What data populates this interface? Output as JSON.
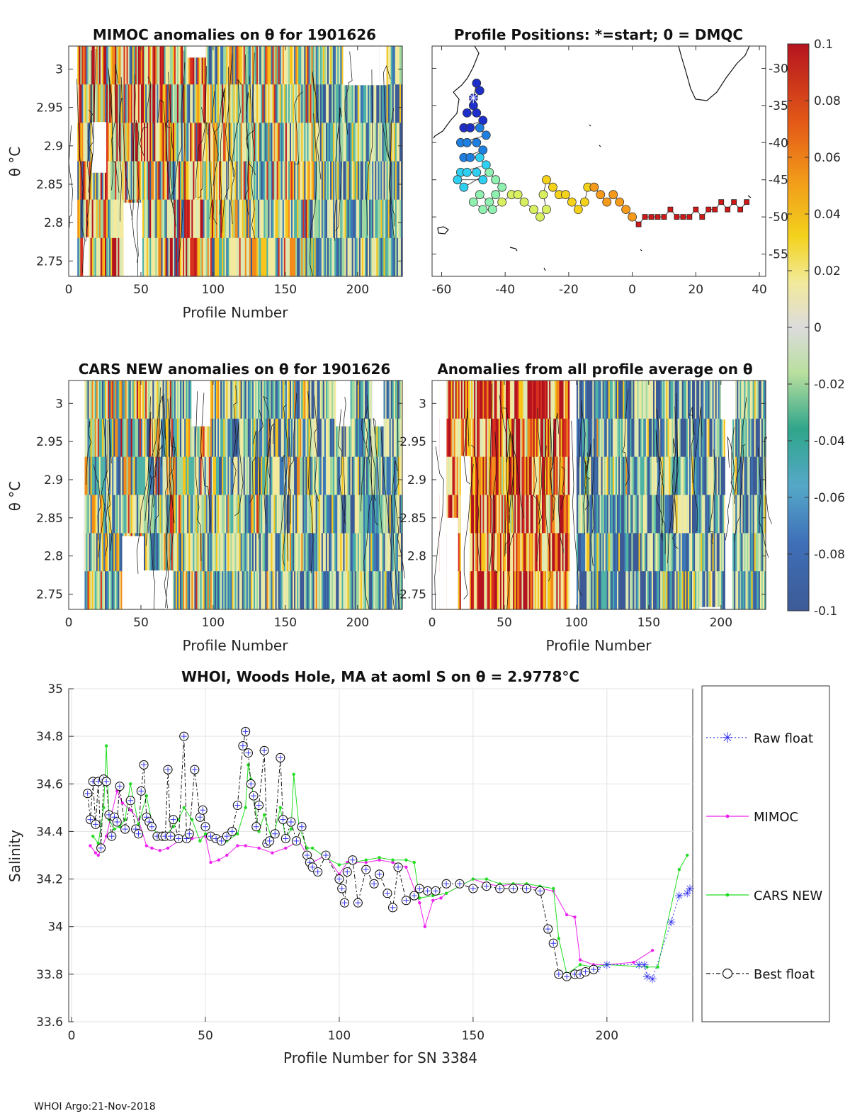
{
  "figure": {
    "footer": "WHOI Argo:21-Nov-2018"
  },
  "chart_data": [
    {
      "id": "mimoc",
      "type": "heatmap",
      "title": "MIMOC anomalies on θ  for 1901626",
      "xlabel": "Profile Number",
      "ylabel": "θ °C",
      "xlim": [
        0,
        231
      ],
      "ylim": [
        2.73,
        3.03
      ],
      "xticks": [
        "0",
        "50",
        "100",
        "150",
        "200"
      ],
      "yticks": [
        "3",
        "2.95",
        "2.9",
        "2.85",
        "2.8",
        "2.75"
      ]
    },
    {
      "id": "positions",
      "type": "scatter",
      "title": "Profile Positions: *=start; 0 = DMQC",
      "xlim": [
        -63,
        42
      ],
      "ylim": [
        -58,
        -27
      ],
      "xticks": [
        "-60",
        "-40",
        "-20",
        "0",
        "20",
        "40"
      ],
      "yticks": [
        "-30",
        "-35",
        "-40",
        "-45",
        "-50",
        "-55"
      ],
      "track": [
        [
          -50,
          -34
        ],
        [
          -49,
          -32
        ],
        [
          -48,
          -33
        ],
        [
          -50,
          -35
        ],
        [
          -52,
          -36
        ],
        [
          -49,
          -36
        ],
        [
          -47,
          -37
        ],
        [
          -53,
          -38
        ],
        [
          -51,
          -38
        ],
        [
          -48,
          -38
        ],
        [
          -46,
          -39
        ],
        [
          -54,
          -40
        ],
        [
          -52,
          -40
        ],
        [
          -49,
          -40
        ],
        [
          -47,
          -41
        ],
        [
          -53,
          -42
        ],
        [
          -51,
          -42
        ],
        [
          -48,
          -42
        ],
        [
          -46,
          -43
        ],
        [
          -54,
          -44
        ],
        [
          -52,
          -44
        ],
        [
          -49,
          -44
        ],
        [
          -47,
          -45
        ],
        [
          -55,
          -45
        ],
        [
          -53,
          -46
        ],
        [
          -45,
          -44
        ],
        [
          -43,
          -45
        ],
        [
          -41,
          -46
        ],
        [
          -43,
          -47
        ],
        [
          -45,
          -48
        ],
        [
          -48,
          -47
        ],
        [
          -50,
          -48
        ],
        [
          -47,
          -49
        ],
        [
          -44,
          -49
        ],
        [
          -41,
          -48
        ],
        [
          -38,
          -47
        ],
        [
          -36,
          -47
        ],
        [
          -34,
          -48
        ],
        [
          -31,
          -49
        ],
        [
          -29,
          -50
        ],
        [
          -27,
          -49
        ],
        [
          -28,
          -47
        ],
        [
          -27,
          -45
        ],
        [
          -25,
          -46
        ],
        [
          -23,
          -47
        ],
        [
          -21,
          -47
        ],
        [
          -19,
          -48
        ],
        [
          -17,
          -49
        ],
        [
          -15,
          -48
        ],
        [
          -14,
          -46
        ],
        [
          -12,
          -46
        ],
        [
          -10,
          -47
        ],
        [
          -8,
          -48
        ],
        [
          -6,
          -47
        ],
        [
          -4,
          -48
        ],
        [
          -2,
          -49
        ],
        [
          0,
          -50
        ]
      ],
      "dmqc_track": [
        [
          2,
          -51
        ],
        [
          4,
          -50
        ],
        [
          6,
          -50
        ],
        [
          8,
          -50
        ],
        [
          10,
          -50
        ],
        [
          12,
          -49
        ],
        [
          14,
          -50
        ],
        [
          16,
          -50
        ],
        [
          18,
          -50
        ],
        [
          20,
          -49
        ],
        [
          22,
          -50
        ],
        [
          24,
          -49
        ],
        [
          26,
          -49
        ],
        [
          28,
          -48
        ],
        [
          30,
          -49
        ],
        [
          32,
          -48
        ],
        [
          34,
          -49
        ],
        [
          36,
          -48
        ]
      ],
      "start": [
        -50,
        -34
      ]
    },
    {
      "id": "cars",
      "type": "heatmap",
      "title": "CARS NEW anomalies on θ for 1901626",
      "xlabel": "Profile Number",
      "ylabel": "θ °C",
      "xlim": [
        0,
        231
      ],
      "ylim": [
        2.73,
        3.03
      ],
      "xticks": [
        "0",
        "50",
        "100",
        "150",
        "200"
      ],
      "yticks": [
        "3",
        "2.95",
        "2.9",
        "2.85",
        "2.8",
        "2.75"
      ]
    },
    {
      "id": "allavg",
      "type": "heatmap",
      "title": "Anomalies from all profile average on θ",
      "xlabel": "Profile Number",
      "xlim": [
        0,
        231
      ],
      "ylim": [
        2.73,
        3.03
      ],
      "xticks": [
        "0",
        "50",
        "100",
        "150",
        "200"
      ],
      "yticks": [
        "3",
        "2.95",
        "2.9",
        "2.85",
        "2.8",
        "2.75"
      ]
    },
    {
      "id": "colorbar",
      "type": "colorbar",
      "range": [
        -0.1,
        0.1
      ],
      "ticks": [
        "0.1",
        "0.08",
        "0.06",
        "0.04",
        "0.02",
        "0",
        "-0.02",
        "-0.04",
        "-0.06",
        "-0.08",
        "-0.1"
      ]
    },
    {
      "id": "salinity",
      "type": "line",
      "title": "WHOI, Woods Hole, MA at aoml S on θ = 2.9778°C",
      "xlabel": "Profile Number for SN 3384",
      "ylabel": "Salinity",
      "xlim": [
        0,
        231
      ],
      "ylim": [
        33.6,
        35
      ],
      "xticks": [
        "0",
        "50",
        "100",
        "150",
        "200"
      ],
      "yticks": [
        "35",
        "34.8",
        "34.6",
        "34.4",
        "34.2",
        "34",
        "33.8",
        "33.6"
      ],
      "legend": [
        "Raw float",
        "MIMOC",
        "CARS NEW",
        "Best float"
      ],
      "series": [
        {
          "name": "Best float",
          "x": [
            6,
            7,
            8,
            9,
            10,
            11,
            12,
            13,
            14,
            15,
            16,
            17,
            18,
            20,
            22,
            24,
            25,
            26,
            27,
            28,
            29,
            30,
            32,
            34,
            35,
            36,
            37,
            38,
            40,
            42,
            43,
            44,
            46,
            48,
            49,
            50,
            52,
            54,
            56,
            58,
            60,
            62,
            64,
            65,
            66,
            67,
            68,
            69,
            70,
            72,
            73,
            74,
            76,
            78,
            79,
            80,
            82,
            84,
            86,
            88,
            89,
            90,
            92,
            95,
            100,
            101,
            102,
            103,
            105,
            107,
            110,
            113,
            115,
            118,
            120,
            122,
            125,
            128,
            130,
            133,
            136,
            140,
            145,
            150,
            155,
            160,
            165,
            170,
            175,
            178,
            180,
            182,
            185,
            188,
            190,
            192,
            195
          ],
          "y": [
            34.56,
            34.45,
            34.61,
            34.43,
            34.61,
            34.33,
            34.62,
            34.61,
            34.47,
            34.38,
            34.46,
            34.44,
            34.59,
            34.41,
            34.53,
            34.41,
            34.39,
            34.57,
            34.68,
            34.46,
            34.44,
            34.42,
            34.38,
            34.38,
            34.38,
            34.66,
            34.38,
            34.45,
            34.37,
            34.8,
            34.37,
            34.39,
            34.66,
            34.46,
            34.49,
            34.42,
            34.38,
            34.37,
            34.36,
            34.38,
            34.4,
            34.51,
            34.76,
            34.82,
            34.73,
            34.6,
            34.55,
            34.42,
            34.51,
            34.74,
            34.35,
            34.36,
            34.39,
            34.71,
            34.45,
            34.37,
            34.44,
            34.36,
            34.42,
            34.3,
            34.27,
            34.25,
            34.23,
            34.3,
            34.2,
            34.16,
            34.1,
            34.23,
            34.28,
            34.1,
            34.24,
            34.18,
            34.22,
            34.14,
            34.08,
            34.25,
            34.11,
            34.13,
            34.16,
            34.15,
            34.15,
            34.18,
            34.18,
            34.16,
            34.17,
            34.16,
            34.16,
            34.16,
            34.15,
            33.99,
            33.93,
            33.8,
            33.79,
            33.8,
            33.8,
            33.81,
            33.82
          ]
        },
        {
          "name": "Raw float",
          "x": [
            196,
            200,
            212,
            214,
            215,
            217,
            224,
            227,
            230,
            231
          ],
          "y": [
            33.82,
            33.84,
            33.84,
            33.84,
            33.79,
            33.78,
            34.02,
            34.13,
            34.14,
            34.16
          ]
        },
        {
          "name": "MIMOC",
          "x": [
            7,
            9,
            10,
            11,
            13,
            17,
            19,
            22,
            25,
            28,
            30,
            33,
            36,
            40,
            45,
            50,
            52,
            55,
            58,
            62,
            65,
            70,
            75,
            80,
            85,
            89,
            90,
            95,
            100,
            103,
            106,
            110,
            115,
            120,
            125,
            130,
            132,
            135,
            138,
            140,
            145,
            150,
            155,
            160,
            165,
            170,
            175,
            180,
            185,
            188,
            190,
            195,
            200,
            210,
            217
          ],
          "y": [
            34.34,
            34.31,
            34.3,
            34.32,
            34.38,
            34.57,
            34.52,
            34.49,
            34.45,
            34.34,
            34.33,
            34.32,
            34.33,
            34.36,
            34.37,
            34.38,
            34.27,
            34.28,
            34.3,
            34.34,
            34.34,
            34.33,
            34.31,
            34.33,
            34.36,
            34.28,
            34.27,
            34.3,
            34.22,
            34.27,
            34.27,
            34.27,
            34.28,
            34.27,
            34.25,
            34.1,
            34.0,
            34.11,
            34.12,
            34.14,
            34.17,
            34.2,
            34.18,
            34.17,
            34.18,
            34.17,
            34.16,
            34.15,
            34.05,
            34.04,
            33.86,
            33.84,
            33.84,
            33.85,
            33.9
          ]
        },
        {
          "name": "CARS NEW",
          "x": [
            8,
            10,
            12,
            13,
            14,
            16,
            18,
            20,
            22,
            25,
            28,
            30,
            32,
            35,
            38,
            40,
            42,
            45,
            48,
            50,
            52,
            55,
            58,
            62,
            65,
            66,
            67,
            70,
            72,
            75,
            78,
            80,
            82,
            83,
            85,
            88,
            90,
            95,
            100,
            105,
            110,
            115,
            120,
            125,
            128,
            130,
            135,
            140,
            145,
            150,
            155,
            160,
            165,
            170,
            175,
            180,
            182,
            185,
            190,
            195,
            200,
            215,
            219,
            227,
            230
          ],
          "y": [
            34.38,
            34.35,
            34.5,
            34.76,
            34.45,
            34.41,
            34.42,
            34.45,
            34.6,
            34.43,
            34.55,
            34.44,
            34.38,
            34.38,
            34.42,
            34.45,
            34.5,
            34.45,
            34.36,
            34.39,
            34.38,
            34.37,
            34.36,
            34.39,
            34.5,
            34.68,
            34.62,
            34.4,
            34.47,
            34.36,
            34.5,
            34.37,
            34.41,
            34.64,
            34.42,
            34.33,
            34.33,
            34.29,
            34.26,
            34.27,
            34.28,
            34.29,
            34.28,
            34.28,
            34.27,
            34.12,
            34.13,
            34.14,
            34.17,
            34.2,
            34.2,
            34.18,
            34.18,
            34.18,
            34.17,
            34.16,
            33.95,
            33.8,
            33.84,
            33.83,
            33.84,
            33.83,
            33.83,
            34.24,
            34.3
          ]
        }
      ]
    }
  ]
}
